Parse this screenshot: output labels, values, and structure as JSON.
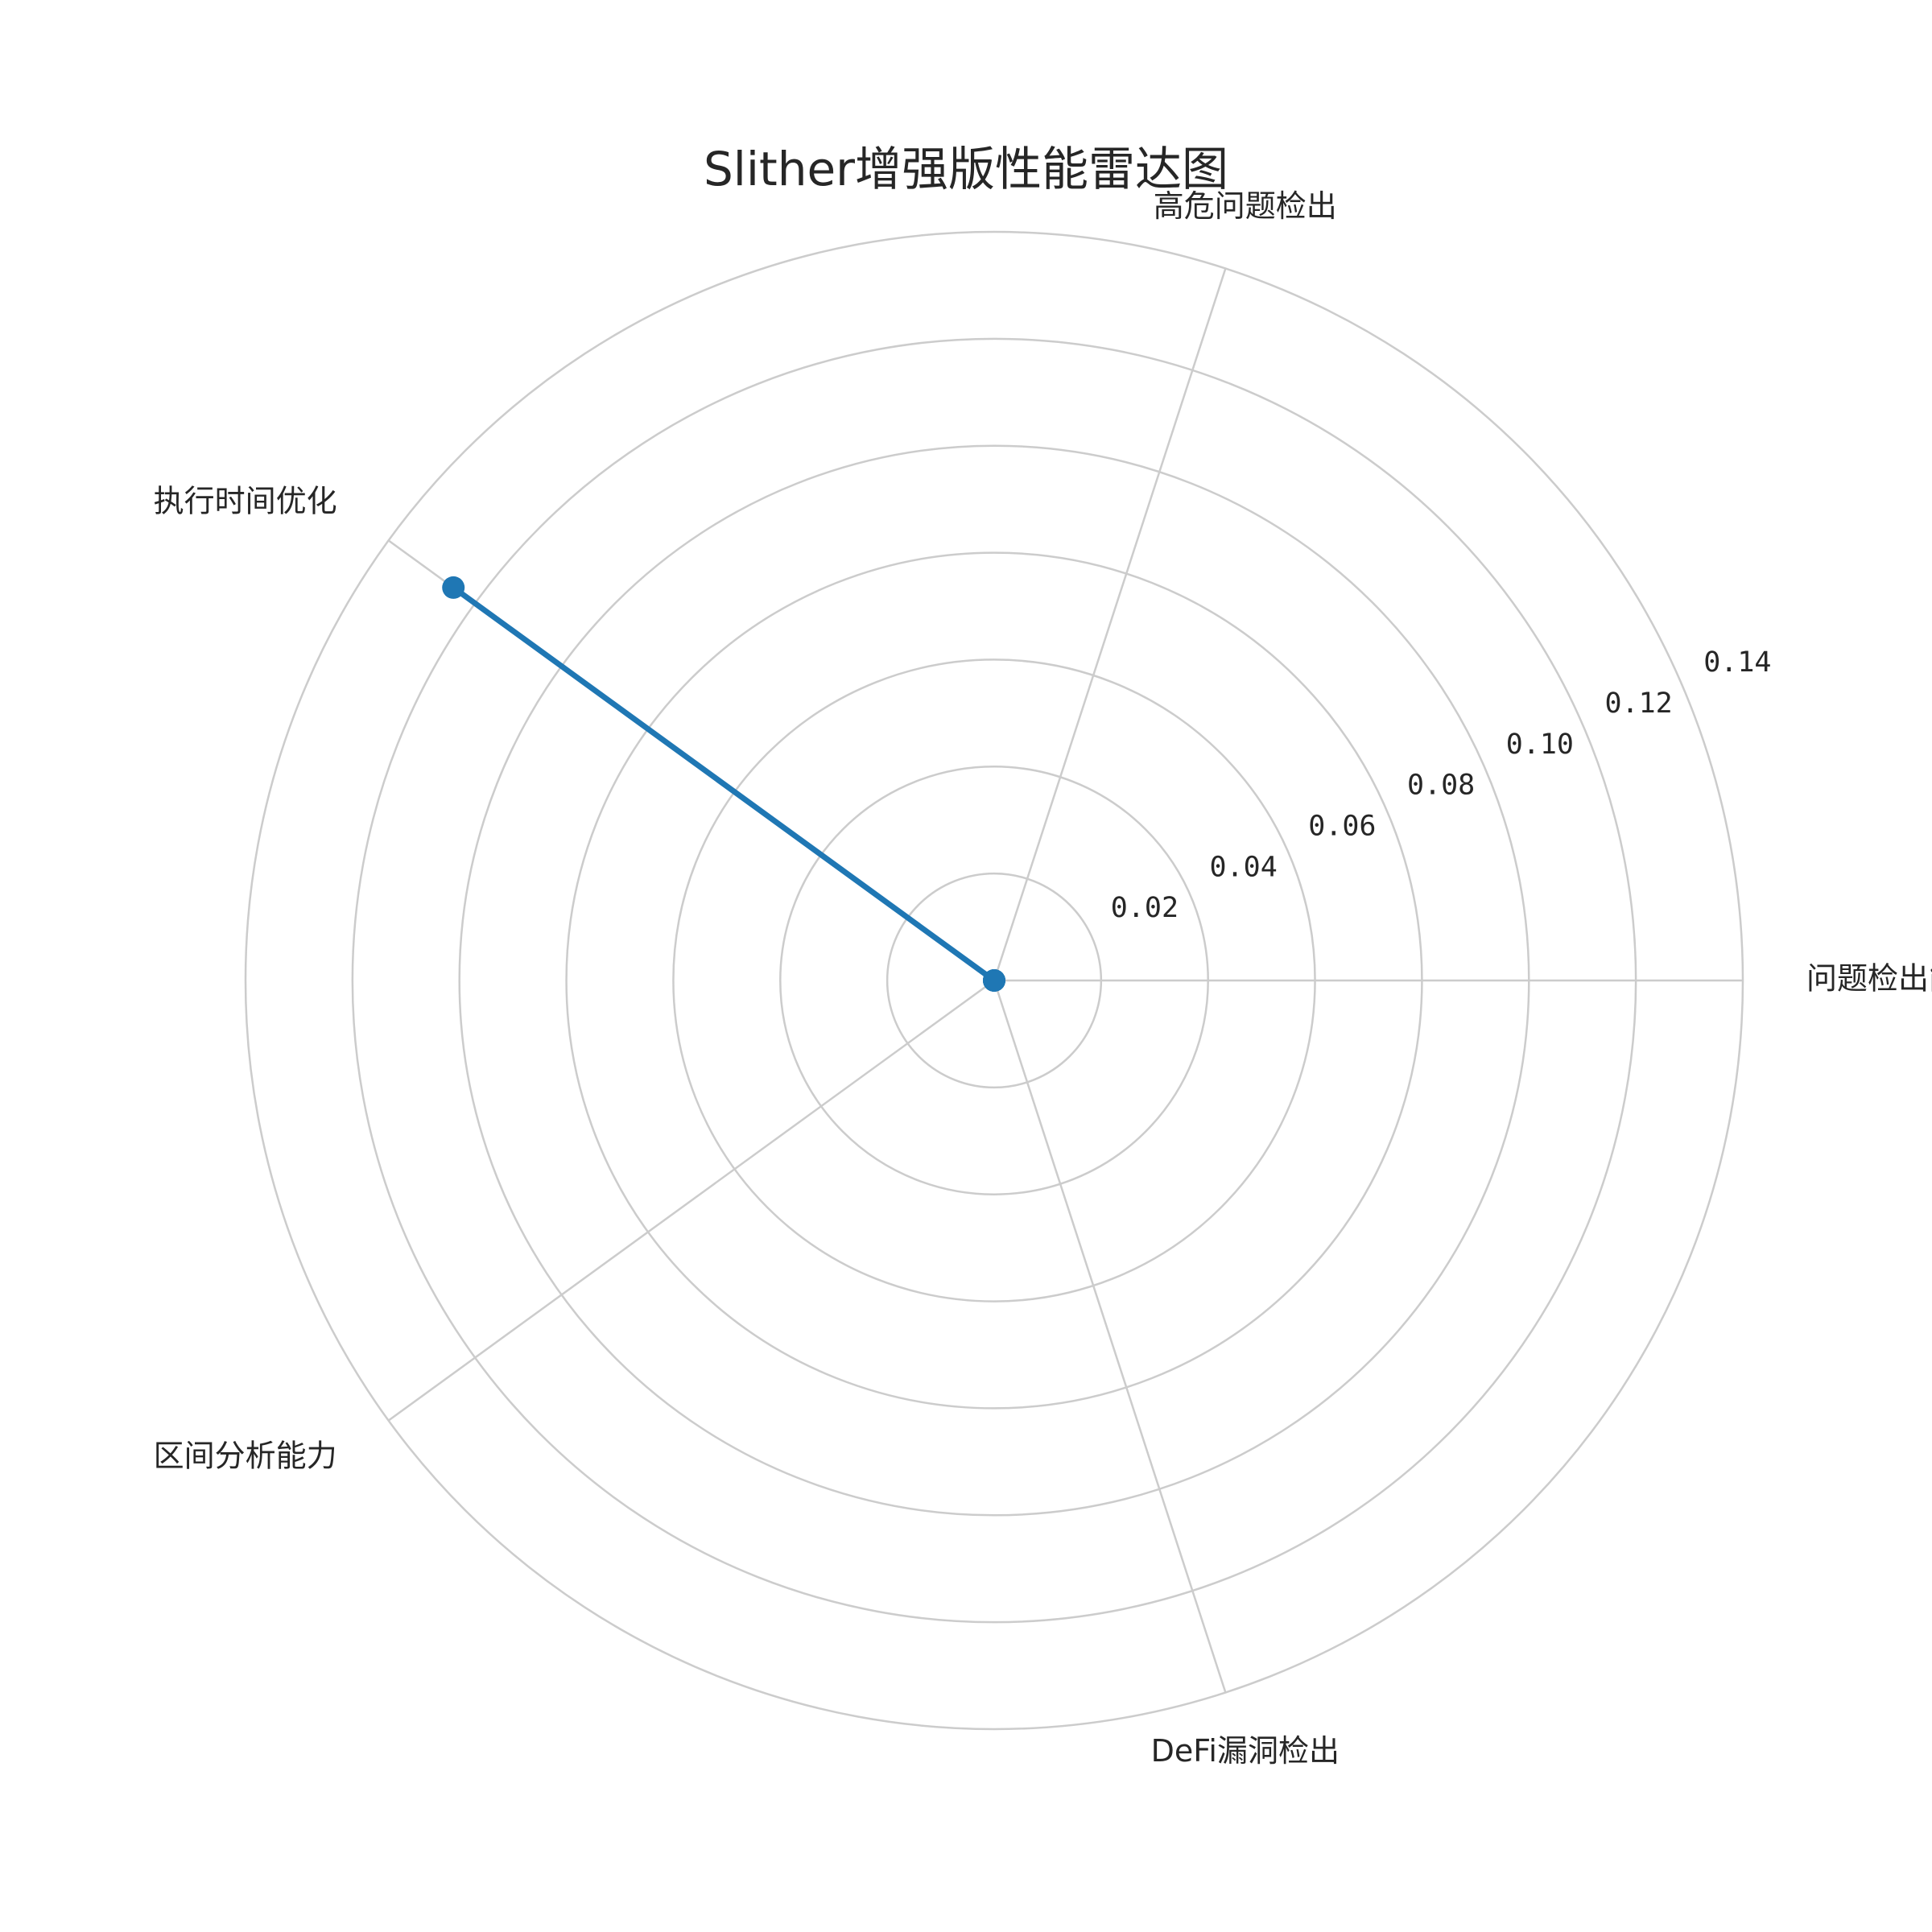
{
  "chart_data": {
    "type": "radar",
    "title": "Slither增强版性能雷达图",
    "axes": [
      "问题检出能力",
      "高危问题检出",
      "执行时间优化",
      "区间分析能力",
      "DeFi漏洞检出"
    ],
    "rlim": [
      0,
      0.14
    ],
    "rticks": [
      0.02,
      0.04,
      0.06,
      0.08,
      0.1,
      0.12,
      0.14
    ],
    "rtick_labels": [
      "0.02",
      "0.04",
      "0.06",
      "0.08",
      "0.10",
      "0.12",
      "0.14"
    ],
    "grid": true,
    "series": [
      {
        "values": [
          0,
          0,
          0.125,
          0,
          0
        ],
        "color": "#1f77b4"
      }
    ]
  }
}
